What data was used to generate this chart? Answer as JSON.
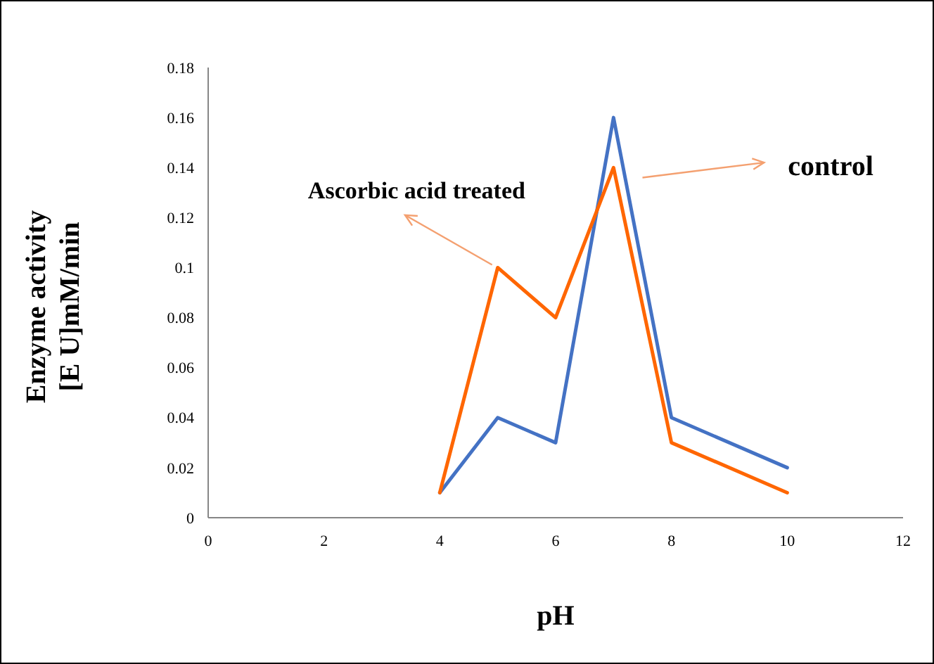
{
  "chart_data": {
    "type": "line",
    "xlabel": "pH",
    "ylabel": "Enzyme activity\n[E U]mM/min",
    "x": [
      4,
      5,
      6,
      7,
      8,
      10
    ],
    "series": [
      {
        "color": "#4472c4",
        "values": [
          0.01,
          0.04,
          0.03,
          0.16,
          0.04,
          0.02
        ]
      },
      {
        "color": "#ff6600",
        "values": [
          0.01,
          0.1,
          0.08,
          0.14,
          0.03,
          0.01
        ]
      }
    ],
    "annotations": [
      "control",
      {
        "text": "Ascorbic acid treated",
        "x": 5,
        "y": 0.1
      }
    ],
    "xlim": [
      0,
      12
    ],
    "xticks": [
      0,
      2,
      4,
      6,
      8,
      10,
      12
    ],
    "ylim": [
      0,
      0.18
    ],
    "yticks": [
      0,
      0.02,
      0.04,
      0.06,
      0.08,
      0.1,
      0.12,
      0.14,
      0.16,
      0.18
    ],
    "grid": false,
    "legend": false,
    "marker": "none",
    "line_style": "solid"
  }
}
